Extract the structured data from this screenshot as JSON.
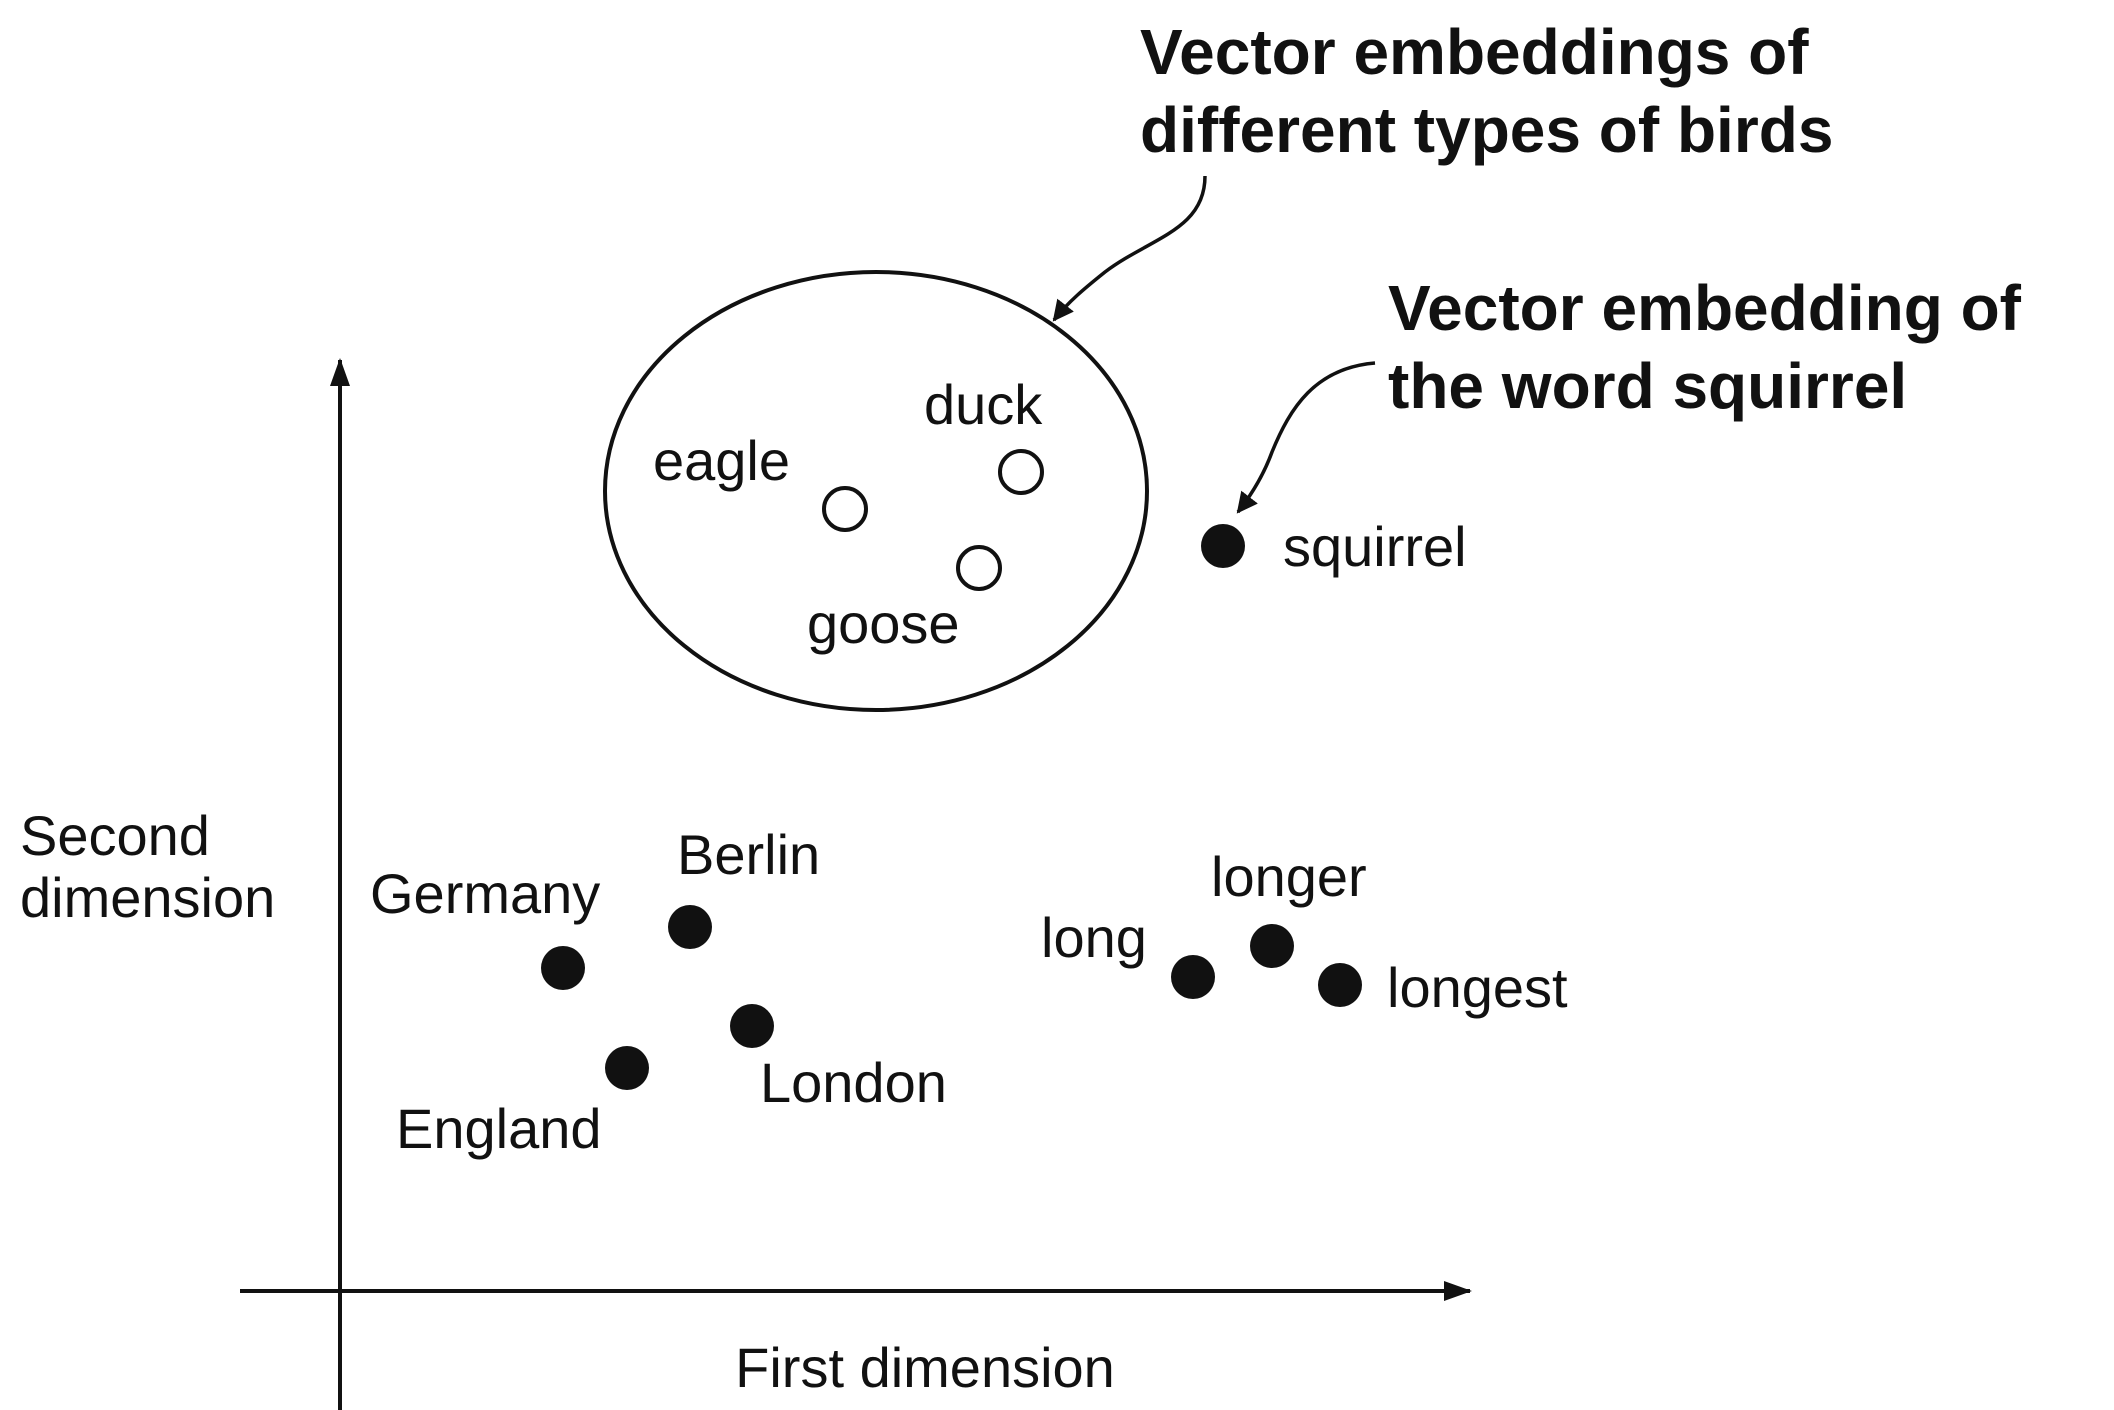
{
  "axes": {
    "x_label": "First dimension",
    "y_label": [
      "Second",
      "dimension"
    ]
  },
  "callouts": {
    "birds": [
      "Vector embeddings of",
      "different types of birds"
    ],
    "squirrel": [
      "Vector embedding of",
      "the word squirrel"
    ]
  },
  "words": {
    "eagle": {
      "label": "eagle",
      "style": "open"
    },
    "duck": {
      "label": "duck",
      "style": "open"
    },
    "goose": {
      "label": "goose",
      "style": "open"
    },
    "squirrel": {
      "label": "squirrel",
      "style": "filled"
    },
    "germany": {
      "label": "Germany",
      "style": "filled"
    },
    "berlin": {
      "label": "Berlin",
      "style": "filled"
    },
    "london": {
      "label": "London",
      "style": "filled"
    },
    "england": {
      "label": "England",
      "style": "filled"
    },
    "long": {
      "label": "long",
      "style": "filled"
    },
    "longer": {
      "label": "longer",
      "style": "filled"
    },
    "longest": {
      "label": "longest",
      "style": "filled"
    }
  },
  "colors": {
    "ink": "#111111",
    "background": "#ffffff"
  }
}
